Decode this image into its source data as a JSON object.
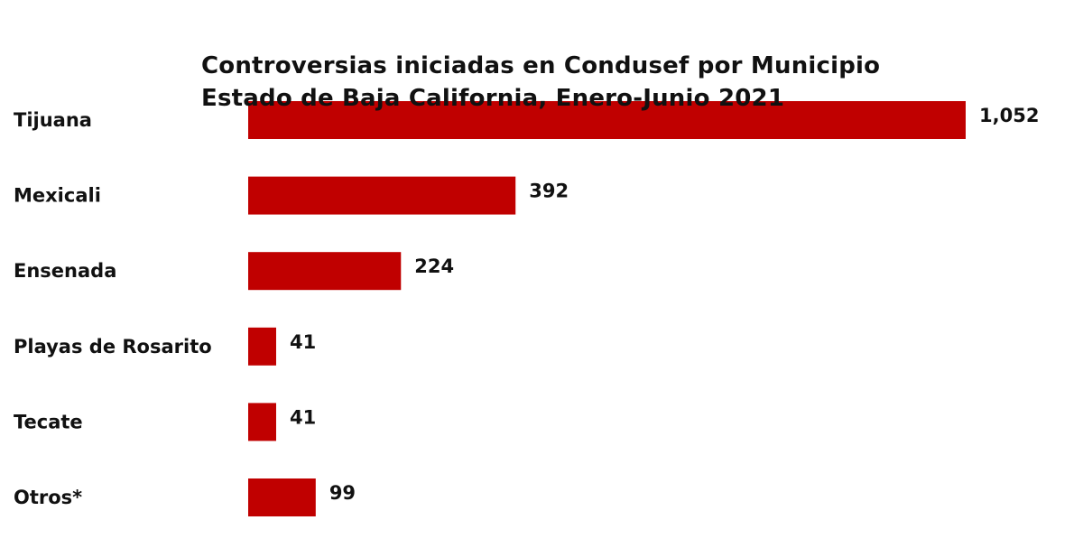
{
  "chart_data": {
    "type": "bar",
    "orientation": "horizontal",
    "title_lines": [
      "Controversias iniciadas en Condusef por Municipio",
      "Estado de Baja California, Enero-Junio 2021"
    ],
    "categories": [
      "Tijuana",
      "Mexicali",
      "Ensenada",
      "Playas de Rosarito",
      "Tecate",
      "Otros*"
    ],
    "values": [
      1052,
      392,
      224,
      41,
      41,
      99
    ],
    "value_labels": [
      "1,052",
      "392",
      "224",
      "41",
      "41",
      "99"
    ],
    "xlim": [
      0,
      1052
    ],
    "xlabel": "",
    "ylabel": "",
    "grid": false,
    "legend": "none",
    "bar_color": "#c00000",
    "text_color": "#111111"
  }
}
